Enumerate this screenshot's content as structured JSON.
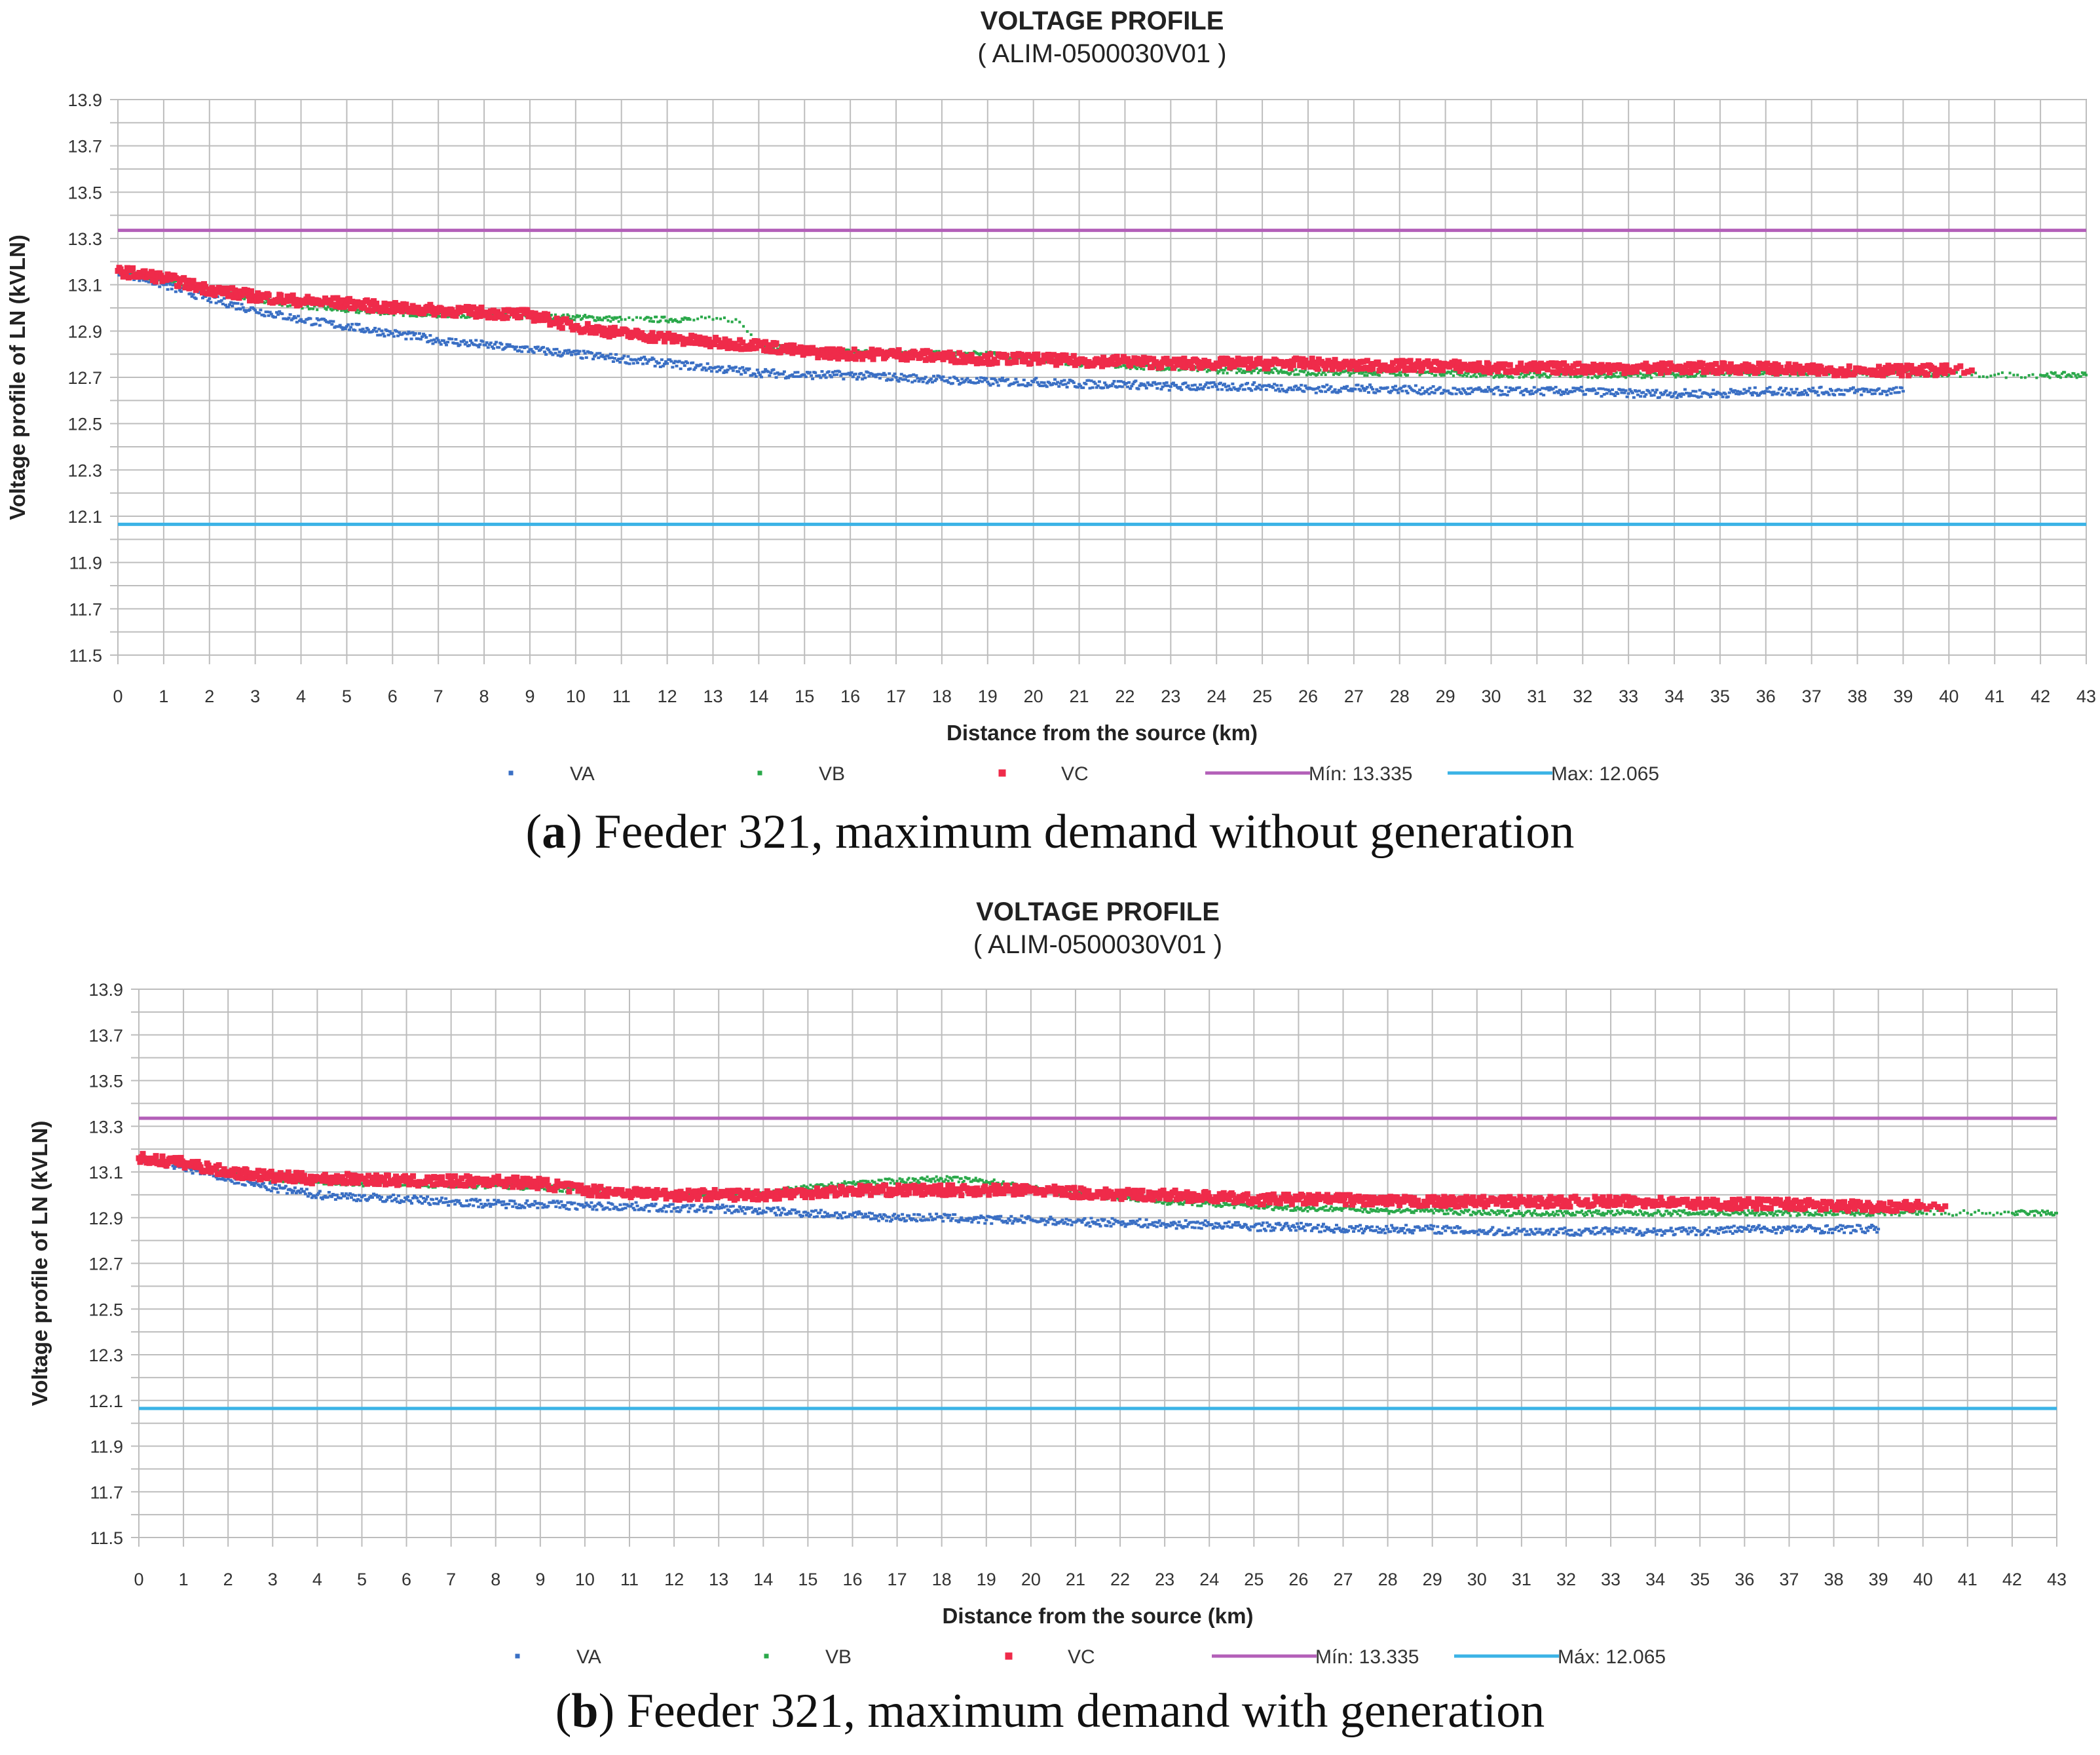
{
  "colors": {
    "VA": "#3a6fc4",
    "VB": "#2aa84a",
    "VC": "#ef2b4a",
    "min_line": "#b35fb8",
    "max_line": "#3bb3e6",
    "grid": "#bdbdbd"
  },
  "panels": [
    {
      "caption": {
        "letter": "a",
        "text": ") Feeder 321, maximum demand without generation",
        "open": "("
      },
      "chart_data": {
        "type": "scatter",
        "title": "VOLTAGE PROFILE",
        "subtitle": "( ALIM-0500030V01 )",
        "xlabel": "Distance from the source (km)",
        "ylabel": "Voltage profile of LN (kVLN)",
        "xlim": [
          0,
          43
        ],
        "ylim": [
          11.5,
          13.9
        ],
        "xticks": [
          "0",
          "1",
          "2",
          "3",
          "4",
          "5",
          "6",
          "7",
          "8",
          "9",
          "10",
          "11",
          "12",
          "13",
          "14",
          "15",
          "16",
          "17",
          "18",
          "19",
          "20",
          "21",
          "22",
          "23",
          "24",
          "25",
          "26",
          "27",
          "28",
          "29",
          "30",
          "31",
          "32",
          "33",
          "34",
          "35",
          "36",
          "37",
          "38",
          "39",
          "40",
          "41",
          "42",
          "43"
        ],
        "yticks": [
          "13.9",
          "13.7",
          "13.5",
          "13.3",
          "13.1",
          "12.9",
          "12.7",
          "12.5",
          "12.3",
          "12.1",
          "11.9",
          "11.7",
          "11.5"
        ],
        "legend": [
          {
            "key": "VA",
            "label": "VA"
          },
          {
            "key": "VB",
            "label": "VB"
          },
          {
            "key": "VC",
            "label": "VC"
          },
          {
            "key": "min_line",
            "label": "Mín: 13.335"
          },
          {
            "key": "max_line",
            "label": "Max: 12.065"
          }
        ],
        "hlines": [
          {
            "key": "min_line",
            "y": 13.335
          },
          {
            "key": "max_line",
            "y": 12.065
          }
        ],
        "series": [
          {
            "name": "VA",
            "x": [
              0,
              1,
              2,
              3,
              4,
              5,
              6,
              7,
              8,
              9,
              10,
              11,
              12,
              13,
              14,
              15,
              16,
              17,
              18,
              19,
              20,
              21,
              22,
              23,
              24,
              25,
              26,
              27,
              28,
              29,
              30,
              31,
              32,
              33,
              34,
              35,
              36,
              37,
              38,
              39
            ],
            "y": [
              13.16,
              13.1,
              13.04,
              12.99,
              12.95,
              12.92,
              12.89,
              12.86,
              12.84,
              12.82,
              12.8,
              12.78,
              12.76,
              12.74,
              12.72,
              12.71,
              12.71,
              12.7,
              12.69,
              12.68,
              12.68,
              12.67,
              12.67,
              12.66,
              12.66,
              12.66,
              12.65,
              12.65,
              12.65,
              12.64,
              12.64,
              12.64,
              12.64,
              12.63,
              12.63,
              12.63,
              12.64,
              12.64,
              12.64,
              12.64
            ]
          },
          {
            "name": "VB",
            "x": [
              0,
              1,
              2,
              3,
              4,
              5,
              6,
              7,
              8,
              9,
              10,
              11,
              11.5,
              12.5,
              13,
              13.5,
              14,
              15,
              16,
              17,
              18,
              19,
              20,
              21,
              22,
              23,
              24,
              25,
              26,
              27,
              28,
              29,
              30,
              31,
              32,
              33,
              34,
              35,
              36,
              37,
              38,
              39,
              40,
              40.5,
              41,
              41.5,
              42,
              43
            ],
            "y": [
              13.16,
              13.12,
              13.07,
              13.04,
              13.01,
              12.99,
              12.98,
              12.97,
              12.97,
              12.96,
              12.96,
              12.95,
              12.95,
              12.95,
              12.95,
              12.95,
              12.85,
              12.81,
              12.81,
              12.81,
              12.8,
              12.8,
              12.78,
              12.76,
              12.75,
              12.74,
              12.73,
              12.73,
              12.72,
              12.72,
              12.72,
              12.72,
              12.71,
              12.71,
              12.71,
              12.71,
              12.71,
              12.72,
              12.72,
              12.72,
              12.72,
              12.72,
              12.71,
              12.71,
              12.71,
              12.71,
              12.71,
              12.71
            ]
          },
          {
            "name": "VC",
            "x": [
              0,
              1,
              2,
              3,
              4,
              5,
              6,
              7,
              8,
              9,
              10,
              11,
              12,
              13,
              14,
              15,
              16,
              17,
              18,
              19,
              20,
              21,
              22,
              23,
              24,
              25,
              26,
              27,
              28,
              29,
              30,
              31,
              32,
              33,
              34,
              35,
              36,
              37,
              38,
              39,
              40,
              40.5
            ],
            "y": [
              13.16,
              13.13,
              13.08,
              13.05,
              13.03,
              13.02,
              13.0,
              12.99,
              12.98,
              12.97,
              12.92,
              12.89,
              12.87,
              12.85,
              12.84,
              12.81,
              12.8,
              12.8,
              12.79,
              12.78,
              12.78,
              12.77,
              12.77,
              12.76,
              12.76,
              12.76,
              12.76,
              12.75,
              12.75,
              12.75,
              12.74,
              12.74,
              12.74,
              12.74,
              12.74,
              12.74,
              12.74,
              12.73,
              12.73,
              12.73,
              12.73,
              12.73
            ]
          }
        ]
      }
    },
    {
      "caption": {
        "letter": "b",
        "text": ") Feeder 321, maximum demand with generation",
        "open": "("
      },
      "chart_data": {
        "type": "scatter",
        "title": "VOLTAGE PROFILE",
        "subtitle": "( ALIM-0500030V01 )",
        "xlabel": "Distance from the source (km)",
        "ylabel": "Voltage profile of LN (kVLN)",
        "xlim": [
          0,
          43
        ],
        "ylim": [
          11.5,
          13.9
        ],
        "xticks": [
          "0",
          "1",
          "2",
          "3",
          "4",
          "5",
          "6",
          "7",
          "8",
          "9",
          "10",
          "11",
          "12",
          "13",
          "14",
          "15",
          "16",
          "17",
          "18",
          "19",
          "20",
          "21",
          "22",
          "23",
          "24",
          "25",
          "26",
          "27",
          "28",
          "29",
          "30",
          "31",
          "32",
          "33",
          "34",
          "35",
          "36",
          "37",
          "38",
          "39",
          "40",
          "41",
          "42",
          "43"
        ],
        "yticks": [
          "13.9",
          "13.7",
          "13.5",
          "13.3",
          "13.1",
          "12.9",
          "12.7",
          "12.5",
          "12.3",
          "12.1",
          "11.9",
          "11.7",
          "11.5"
        ],
        "legend": [
          {
            "key": "VA",
            "label": "VA"
          },
          {
            "key": "VB",
            "label": "VB"
          },
          {
            "key": "VC",
            "label": "VC"
          },
          {
            "key": "min_line",
            "label": "Mín: 13.335"
          },
          {
            "key": "max_line",
            "label": "Máx: 12.065"
          }
        ],
        "hlines": [
          {
            "key": "min_line",
            "y": 13.335
          },
          {
            "key": "max_line",
            "y": 12.065
          }
        ],
        "series": [
          {
            "name": "VA",
            "x": [
              0,
              1,
              2,
              3,
              4,
              5,
              6,
              7,
              8,
              9,
              10,
              11,
              12,
              13,
              14,
              15,
              16,
              17,
              18,
              19,
              20,
              21,
              22,
              23,
              24,
              25,
              26,
              27,
              28,
              29,
              30,
              31,
              32,
              33,
              34,
              35,
              36,
              37,
              38,
              39
            ],
            "y": [
              13.16,
              13.12,
              13.07,
              13.03,
              13.0,
              12.99,
              12.98,
              12.97,
              12.96,
              12.96,
              12.95,
              12.95,
              12.94,
              12.94,
              12.93,
              12.92,
              12.91,
              12.9,
              12.9,
              12.89,
              12.89,
              12.88,
              12.88,
              12.87,
              12.87,
              12.86,
              12.86,
              12.85,
              12.85,
              12.85,
              12.84,
              12.84,
              12.84,
              12.84,
              12.84,
              12.84,
              12.85,
              12.85,
              12.85,
              12.85
            ]
          },
          {
            "name": "VB",
            "x": [
              0,
              1,
              2,
              3,
              4,
              5,
              6,
              7,
              8,
              9,
              10,
              11,
              12,
              13,
              14,
              15,
              16,
              17,
              18,
              19,
              20,
              21,
              22,
              23,
              24,
              25,
              26,
              27,
              28,
              29,
              30,
              31,
              32,
              33,
              34,
              35,
              36,
              37,
              38,
              39,
              40,
              40.5,
              41,
              41.5,
              42,
              43
            ],
            "y": [
              13.16,
              13.13,
              13.09,
              13.07,
              13.06,
              13.05,
              13.05,
              13.04,
              13.04,
              13.03,
              13.02,
              13.01,
              13.0,
              13.0,
              13.01,
              13.03,
              13.05,
              13.06,
              13.07,
              13.06,
              13.03,
              13.0,
              12.99,
              12.97,
              12.96,
              12.95,
              12.94,
              12.94,
              12.93,
              12.93,
              12.92,
              12.92,
              12.92,
              12.92,
              12.92,
              12.92,
              12.92,
              12.92,
              12.92,
              12.92,
              12.92,
              12.92,
              12.92,
              12.92,
              12.92,
              12.92
            ]
          },
          {
            "name": "VC",
            "x": [
              0,
              1,
              2,
              3,
              4,
              5,
              6,
              7,
              8,
              9,
              10,
              11,
              12,
              13,
              14,
              15,
              16,
              17,
              18,
              19,
              20,
              21,
              22,
              23,
              24,
              25,
              26,
              27,
              28,
              29,
              30,
              31,
              32,
              33,
              34,
              35,
              36,
              37,
              38,
              39,
              40,
              40.5
            ],
            "y": [
              13.16,
              13.14,
              13.1,
              13.08,
              13.07,
              13.07,
              13.06,
              13.06,
              13.06,
              13.05,
              13.02,
              13.01,
              13.0,
              13.0,
              13.0,
              13.01,
              13.02,
              13.02,
              13.02,
              13.02,
              13.02,
              13.01,
              13.0,
              13.0,
              12.99,
              12.98,
              12.98,
              12.98,
              12.97,
              12.97,
              12.97,
              12.97,
              12.97,
              12.97,
              12.97,
              12.96,
              12.96,
              12.96,
              12.95,
              12.95,
              12.95,
              12.95
            ]
          }
        ]
      }
    }
  ]
}
